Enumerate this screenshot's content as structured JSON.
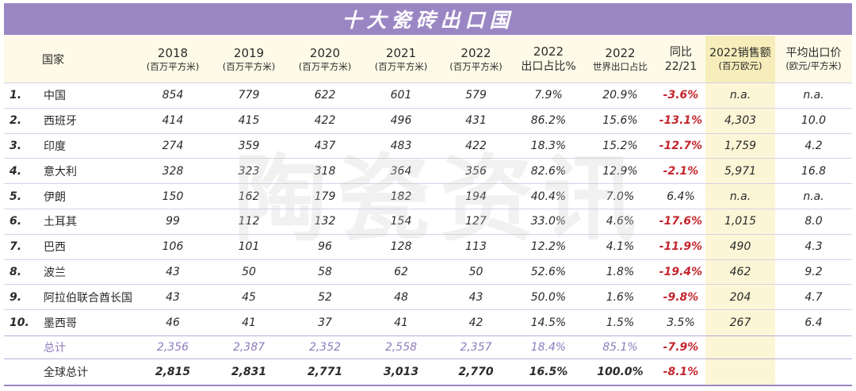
{
  "title": "十大瓷砖出口国",
  "watermark": "陶瓷资讯",
  "colors": {
    "header_purple": "#9b86c4",
    "negative_red": "#c4262e",
    "highlight_yellow": "#f6edba",
    "total_purple": "#8d7cbd"
  },
  "headers": {
    "country": "国家",
    "y2018": {
      "line1": "2018",
      "line2": "(百万平方米)"
    },
    "y2019": {
      "line1": "2019",
      "line2": "(百万平方米)"
    },
    "y2020": {
      "line1": "2020",
      "line2": "(百万平方米)"
    },
    "y2021": {
      "line1": "2021",
      "line2": "(百万平方米)"
    },
    "y2022": {
      "line1": "2022",
      "line2": "(百万平方米)"
    },
    "export_share": {
      "line1": "2022",
      "line2": "出口占比%"
    },
    "world_share": {
      "line1": "2022",
      "line2": "世界出口占比"
    },
    "yoy": {
      "line1": "同比",
      "line2": "22/21"
    },
    "sales": {
      "line1": "2022销售额",
      "line2": "(百万欧元)"
    },
    "avg_price": {
      "line1": "平均出口价",
      "line2": "(欧元/平方米)"
    }
  },
  "rows": [
    {
      "rank": "1.",
      "country": "中国",
      "y2018": "854",
      "y2019": "779",
      "y2020": "622",
      "y2021": "601",
      "y2022": "579",
      "export_share": "7.9%",
      "world_share": "20.9%",
      "yoy": "-3.6%",
      "sales": "n.a.",
      "avg_price": "n.a."
    },
    {
      "rank": "2.",
      "country": "西班牙",
      "y2018": "414",
      "y2019": "415",
      "y2020": "422",
      "y2021": "496",
      "y2022": "431",
      "export_share": "86.2%",
      "world_share": "15.6%",
      "yoy": "-13.1%",
      "sales": "4,303",
      "avg_price": "10.0"
    },
    {
      "rank": "3.",
      "country": "印度",
      "y2018": "274",
      "y2019": "359",
      "y2020": "437",
      "y2021": "483",
      "y2022": "422",
      "export_share": "18.3%",
      "world_share": "15.2%",
      "yoy": "-12.7%",
      "sales": "1,759",
      "avg_price": "4.2"
    },
    {
      "rank": "4.",
      "country": "意大利",
      "y2018": "328",
      "y2019": "323",
      "y2020": "318",
      "y2021": "364",
      "y2022": "356",
      "export_share": "82.6%",
      "world_share": "12.9%",
      "yoy": "-2.1%",
      "sales": "5,971",
      "avg_price": "16.8"
    },
    {
      "rank": "5.",
      "country": "伊朗",
      "y2018": "150",
      "y2019": "162",
      "y2020": "179",
      "y2021": "182",
      "y2022": "194",
      "export_share": "40.4%",
      "world_share": "7.0%",
      "yoy": "6.4%",
      "sales": "n.a.",
      "avg_price": "n.a."
    },
    {
      "rank": "6.",
      "country": "土耳其",
      "y2018": "99",
      "y2019": "112",
      "y2020": "132",
      "y2021": "154",
      "y2022": "127",
      "export_share": "33.0%",
      "world_share": "4.6%",
      "yoy": "-17.6%",
      "sales": "1,015",
      "avg_price": "8.0"
    },
    {
      "rank": "7.",
      "country": "巴西",
      "y2018": "106",
      "y2019": "101",
      "y2020": "96",
      "y2021": "128",
      "y2022": "113",
      "export_share": "12.2%",
      "world_share": "4.1%",
      "yoy": "-11.9%",
      "sales": "490",
      "avg_price": "4.3"
    },
    {
      "rank": "8.",
      "country": "波兰",
      "y2018": "43",
      "y2019": "50",
      "y2020": "58",
      "y2021": "62",
      "y2022": "50",
      "export_share": "52.6%",
      "world_share": "1.8%",
      "yoy": "-19.4%",
      "sales": "462",
      "avg_price": "9.2"
    },
    {
      "rank": "9.",
      "country": "阿拉伯联合酋长国",
      "y2018": "43",
      "y2019": "45",
      "y2020": "52",
      "y2021": "48",
      "y2022": "43",
      "export_share": "50.0%",
      "world_share": "1.6%",
      "yoy": "-9.8%",
      "sales": "204",
      "avg_price": "4.7"
    },
    {
      "rank": "10.",
      "country": "墨西哥",
      "y2018": "46",
      "y2019": "41",
      "y2020": "37",
      "y2021": "41",
      "y2022": "42",
      "export_share": "14.5%",
      "world_share": "1.5%",
      "yoy": "3.5%",
      "sales": "267",
      "avg_price": "6.4"
    }
  ],
  "total": {
    "label": "总计",
    "y2018": "2,356",
    "y2019": "2,387",
    "y2020": "2,352",
    "y2021": "2,558",
    "y2022": "2,357",
    "export_share": "18.4%",
    "world_share": "85.1%",
    "yoy": "-7.9%"
  },
  "world_total": {
    "label": "全球总计",
    "y2018": "2,815",
    "y2019": "2,831",
    "y2020": "2,771",
    "y2021": "3,013",
    "y2022": "2,770",
    "export_share": "16.5%",
    "world_share": "100.0%",
    "yoy": "-8.1%"
  }
}
